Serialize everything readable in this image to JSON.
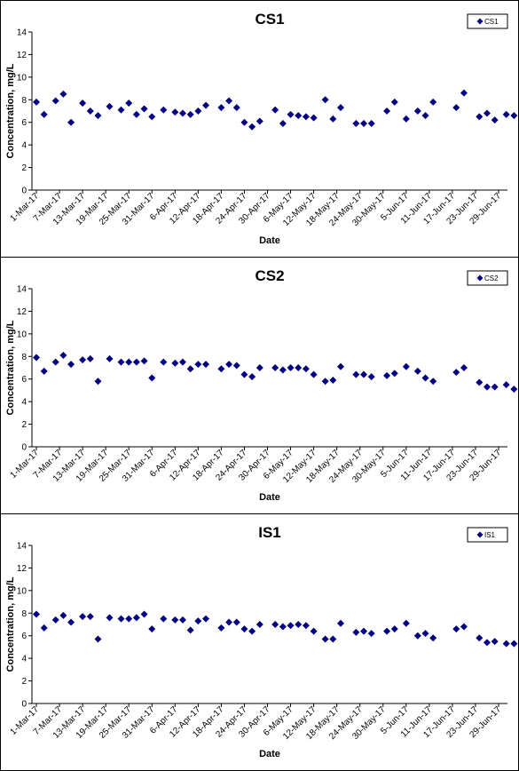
{
  "chart_data": [
    {
      "type": "scatter",
      "title": "CS1",
      "xlabel": "Date",
      "ylabel": "Concentration, mg/L",
      "ylim": [
        0,
        14
      ],
      "yticks": [
        "0",
        "2",
        "4",
        "6",
        "8",
        "10",
        "12",
        "14"
      ],
      "xlim": [
        "2017-03-01",
        "2017-06-30"
      ],
      "xticks": [
        "1-Mar-17",
        "7-Mar-17",
        "13-Mar-17",
        "19-Mar-17",
        "25-Mar-17",
        "31-Mar-17",
        "6-Apr-17",
        "12-Apr-17",
        "18-Apr-17",
        "24-Apr-17",
        "30-Apr-17",
        "6-May-17",
        "12-May-17",
        "18-May-17",
        "24-May-17",
        "30-May-17",
        "5-Jun-17",
        "11-Jun-17",
        "17-Jun-17",
        "23-Jun-17",
        "29-Jun-17"
      ],
      "grid": false,
      "legend": "top-right",
      "marker_color": "#000080",
      "series": [
        {
          "name": "CS1",
          "points": [
            [
              "2017-03-01",
              7.8
            ],
            [
              "2017-03-03",
              6.7
            ],
            [
              "2017-03-06",
              7.9
            ],
            [
              "2017-03-08",
              8.5
            ],
            [
              "2017-03-10",
              6.0
            ],
            [
              "2017-03-13",
              7.7
            ],
            [
              "2017-03-15",
              7.0
            ],
            [
              "2017-03-17",
              6.6
            ],
            [
              "2017-03-20",
              7.4
            ],
            [
              "2017-03-23",
              7.1
            ],
            [
              "2017-03-25",
              7.7
            ],
            [
              "2017-03-27",
              6.7
            ],
            [
              "2017-03-29",
              7.2
            ],
            [
              "2017-03-31",
              6.5
            ],
            [
              "2017-04-03",
              7.1
            ],
            [
              "2017-04-06",
              6.9
            ],
            [
              "2017-04-08",
              6.8
            ],
            [
              "2017-04-10",
              6.7
            ],
            [
              "2017-04-12",
              7.0
            ],
            [
              "2017-04-14",
              7.5
            ],
            [
              "2017-04-18",
              7.3
            ],
            [
              "2017-04-20",
              7.9
            ],
            [
              "2017-04-22",
              7.3
            ],
            [
              "2017-04-24",
              6.0
            ],
            [
              "2017-04-26",
              5.6
            ],
            [
              "2017-04-28",
              6.1
            ],
            [
              "2017-05-02",
              7.1
            ],
            [
              "2017-05-04",
              5.9
            ],
            [
              "2017-05-06",
              6.7
            ],
            [
              "2017-05-08",
              6.6
            ],
            [
              "2017-05-10",
              6.5
            ],
            [
              "2017-05-12",
              6.4
            ],
            [
              "2017-05-15",
              8.0
            ],
            [
              "2017-05-17",
              6.3
            ],
            [
              "2017-05-19",
              7.3
            ],
            [
              "2017-05-23",
              5.9
            ],
            [
              "2017-05-25",
              5.9
            ],
            [
              "2017-05-27",
              5.9
            ],
            [
              "2017-05-31",
              7.0
            ],
            [
              "2017-06-02",
              7.8
            ],
            [
              "2017-06-05",
              6.3
            ],
            [
              "2017-06-08",
              7.0
            ],
            [
              "2017-06-10",
              6.6
            ],
            [
              "2017-06-12",
              7.8
            ],
            [
              "2017-06-18",
              7.3
            ],
            [
              "2017-06-20",
              8.6
            ],
            [
              "2017-06-24",
              6.5
            ],
            [
              "2017-06-26",
              6.8
            ],
            [
              "2017-06-28",
              6.2
            ],
            [
              "2017-07-01",
              6.7
            ],
            [
              "2017-07-03",
              6.6
            ],
            [
              "2017-07-05",
              6.0
            ]
          ]
        }
      ]
    },
    {
      "type": "scatter",
      "title": "CS2",
      "xlabel": "Date",
      "ylabel": "Concentration, mg/L",
      "ylim": [
        0,
        14
      ],
      "yticks": [
        "0",
        "2",
        "4",
        "6",
        "8",
        "10",
        "12",
        "14"
      ],
      "xlim": [
        "2017-03-01",
        "2017-06-30"
      ],
      "xticks": [
        "1-Mar-17",
        "7-Mar-17",
        "13-Mar-17",
        "19-Mar-17",
        "25-Mar-17",
        "31-Mar-17",
        "6-Apr-17",
        "12-Apr-17",
        "18-Apr-17",
        "24-Apr-17",
        "30-Apr-17",
        "6-May-17",
        "12-May-17",
        "18-May-17",
        "24-May-17",
        "30-May-17",
        "5-Jun-17",
        "11-Jun-17",
        "17-Jun-17",
        "23-Jun-17",
        "29-Jun-17"
      ],
      "grid": false,
      "legend": "top-right",
      "marker_color": "#000080",
      "series": [
        {
          "name": "CS2",
          "points": [
            [
              "2017-03-01",
              7.9
            ],
            [
              "2017-03-03",
              6.7
            ],
            [
              "2017-03-06",
              7.5
            ],
            [
              "2017-03-08",
              8.1
            ],
            [
              "2017-03-10",
              7.3
            ],
            [
              "2017-03-13",
              7.7
            ],
            [
              "2017-03-15",
              7.8
            ],
            [
              "2017-03-17",
              5.8
            ],
            [
              "2017-03-20",
              7.8
            ],
            [
              "2017-03-23",
              7.5
            ],
            [
              "2017-03-25",
              7.5
            ],
            [
              "2017-03-27",
              7.5
            ],
            [
              "2017-03-29",
              7.6
            ],
            [
              "2017-03-31",
              6.1
            ],
            [
              "2017-04-03",
              7.5
            ],
            [
              "2017-04-06",
              7.4
            ],
            [
              "2017-04-08",
              7.5
            ],
            [
              "2017-04-10",
              6.9
            ],
            [
              "2017-04-12",
              7.3
            ],
            [
              "2017-04-14",
              7.3
            ],
            [
              "2017-04-18",
              6.9
            ],
            [
              "2017-04-20",
              7.3
            ],
            [
              "2017-04-22",
              7.2
            ],
            [
              "2017-04-24",
              6.4
            ],
            [
              "2017-04-26",
              6.2
            ],
            [
              "2017-04-28",
              7.0
            ],
            [
              "2017-05-02",
              7.0
            ],
            [
              "2017-05-04",
              6.8
            ],
            [
              "2017-05-06",
              7.0
            ],
            [
              "2017-05-08",
              7.0
            ],
            [
              "2017-05-10",
              6.9
            ],
            [
              "2017-05-12",
              6.4
            ],
            [
              "2017-05-15",
              5.8
            ],
            [
              "2017-05-17",
              5.9
            ],
            [
              "2017-05-19",
              7.1
            ],
            [
              "2017-05-23",
              6.4
            ],
            [
              "2017-05-25",
              6.4
            ],
            [
              "2017-05-27",
              6.2
            ],
            [
              "2017-05-31",
              6.3
            ],
            [
              "2017-06-02",
              6.5
            ],
            [
              "2017-06-05",
              7.1
            ],
            [
              "2017-06-08",
              6.7
            ],
            [
              "2017-06-10",
              6.1
            ],
            [
              "2017-06-12",
              5.8
            ],
            [
              "2017-06-18",
              6.6
            ],
            [
              "2017-06-20",
              7.0
            ],
            [
              "2017-06-24",
              5.7
            ],
            [
              "2017-06-26",
              5.3
            ],
            [
              "2017-06-28",
              5.3
            ],
            [
              "2017-07-01",
              5.5
            ],
            [
              "2017-07-03",
              5.1
            ],
            [
              "2017-07-05",
              5.0
            ]
          ]
        }
      ]
    },
    {
      "type": "scatter",
      "title": "IS1",
      "xlabel": "Date",
      "ylabel": "Concentration, mg/L",
      "ylim": [
        0,
        14
      ],
      "yticks": [
        "0",
        "2",
        "4",
        "6",
        "8",
        "10",
        "12",
        "14"
      ],
      "xlim": [
        "2017-03-01",
        "2017-06-30"
      ],
      "xticks": [
        "1-Mar-17",
        "7-Mar-17",
        "13-Mar-17",
        "19-Mar-17",
        "25-Mar-17",
        "31-Mar-17",
        "6-Apr-17",
        "12-Apr-17",
        "18-Apr-17",
        "24-Apr-17",
        "30-Apr-17",
        "6-May-17",
        "12-May-17",
        "18-May-17",
        "24-May-17",
        "30-May-17",
        "5-Jun-17",
        "11-Jun-17",
        "17-Jun-17",
        "23-Jun-17",
        "29-Jun-17"
      ],
      "grid": false,
      "legend": "top-right",
      "marker_color": "#000080",
      "series": [
        {
          "name": "IS1",
          "points": [
            [
              "2017-03-01",
              7.9
            ],
            [
              "2017-03-03",
              6.7
            ],
            [
              "2017-03-06",
              7.4
            ],
            [
              "2017-03-08",
              7.8
            ],
            [
              "2017-03-10",
              7.2
            ],
            [
              "2017-03-13",
              7.7
            ],
            [
              "2017-03-15",
              7.7
            ],
            [
              "2017-03-17",
              5.7
            ],
            [
              "2017-03-20",
              7.6
            ],
            [
              "2017-03-23",
              7.5
            ],
            [
              "2017-03-25",
              7.5
            ],
            [
              "2017-03-27",
              7.6
            ],
            [
              "2017-03-29",
              7.9
            ],
            [
              "2017-03-31",
              6.6
            ],
            [
              "2017-04-03",
              7.5
            ],
            [
              "2017-04-06",
              7.4
            ],
            [
              "2017-04-08",
              7.4
            ],
            [
              "2017-04-10",
              6.5
            ],
            [
              "2017-04-12",
              7.3
            ],
            [
              "2017-04-14",
              7.5
            ],
            [
              "2017-04-18",
              6.7
            ],
            [
              "2017-04-20",
              7.2
            ],
            [
              "2017-04-22",
              7.2
            ],
            [
              "2017-04-24",
              6.6
            ],
            [
              "2017-04-26",
              6.4
            ],
            [
              "2017-04-28",
              7.0
            ],
            [
              "2017-05-02",
              7.0
            ],
            [
              "2017-05-04",
              6.8
            ],
            [
              "2017-05-06",
              6.9
            ],
            [
              "2017-05-08",
              7.0
            ],
            [
              "2017-05-10",
              6.9
            ],
            [
              "2017-05-12",
              6.4
            ],
            [
              "2017-05-15",
              5.7
            ],
            [
              "2017-05-17",
              5.7
            ],
            [
              "2017-05-19",
              7.1
            ],
            [
              "2017-05-23",
              6.3
            ],
            [
              "2017-05-25",
              6.4
            ],
            [
              "2017-05-27",
              6.2
            ],
            [
              "2017-05-31",
              6.4
            ],
            [
              "2017-06-02",
              6.6
            ],
            [
              "2017-06-05",
              7.1
            ],
            [
              "2017-06-08",
              6.0
            ],
            [
              "2017-06-10",
              6.2
            ],
            [
              "2017-06-12",
              5.8
            ],
            [
              "2017-06-18",
              6.6
            ],
            [
              "2017-06-20",
              6.8
            ],
            [
              "2017-06-24",
              5.8
            ],
            [
              "2017-06-26",
              5.4
            ],
            [
              "2017-06-28",
              5.5
            ],
            [
              "2017-07-01",
              5.3
            ],
            [
              "2017-07-03",
              5.3
            ],
            [
              "2017-07-05",
              5.0
            ]
          ]
        }
      ]
    }
  ]
}
